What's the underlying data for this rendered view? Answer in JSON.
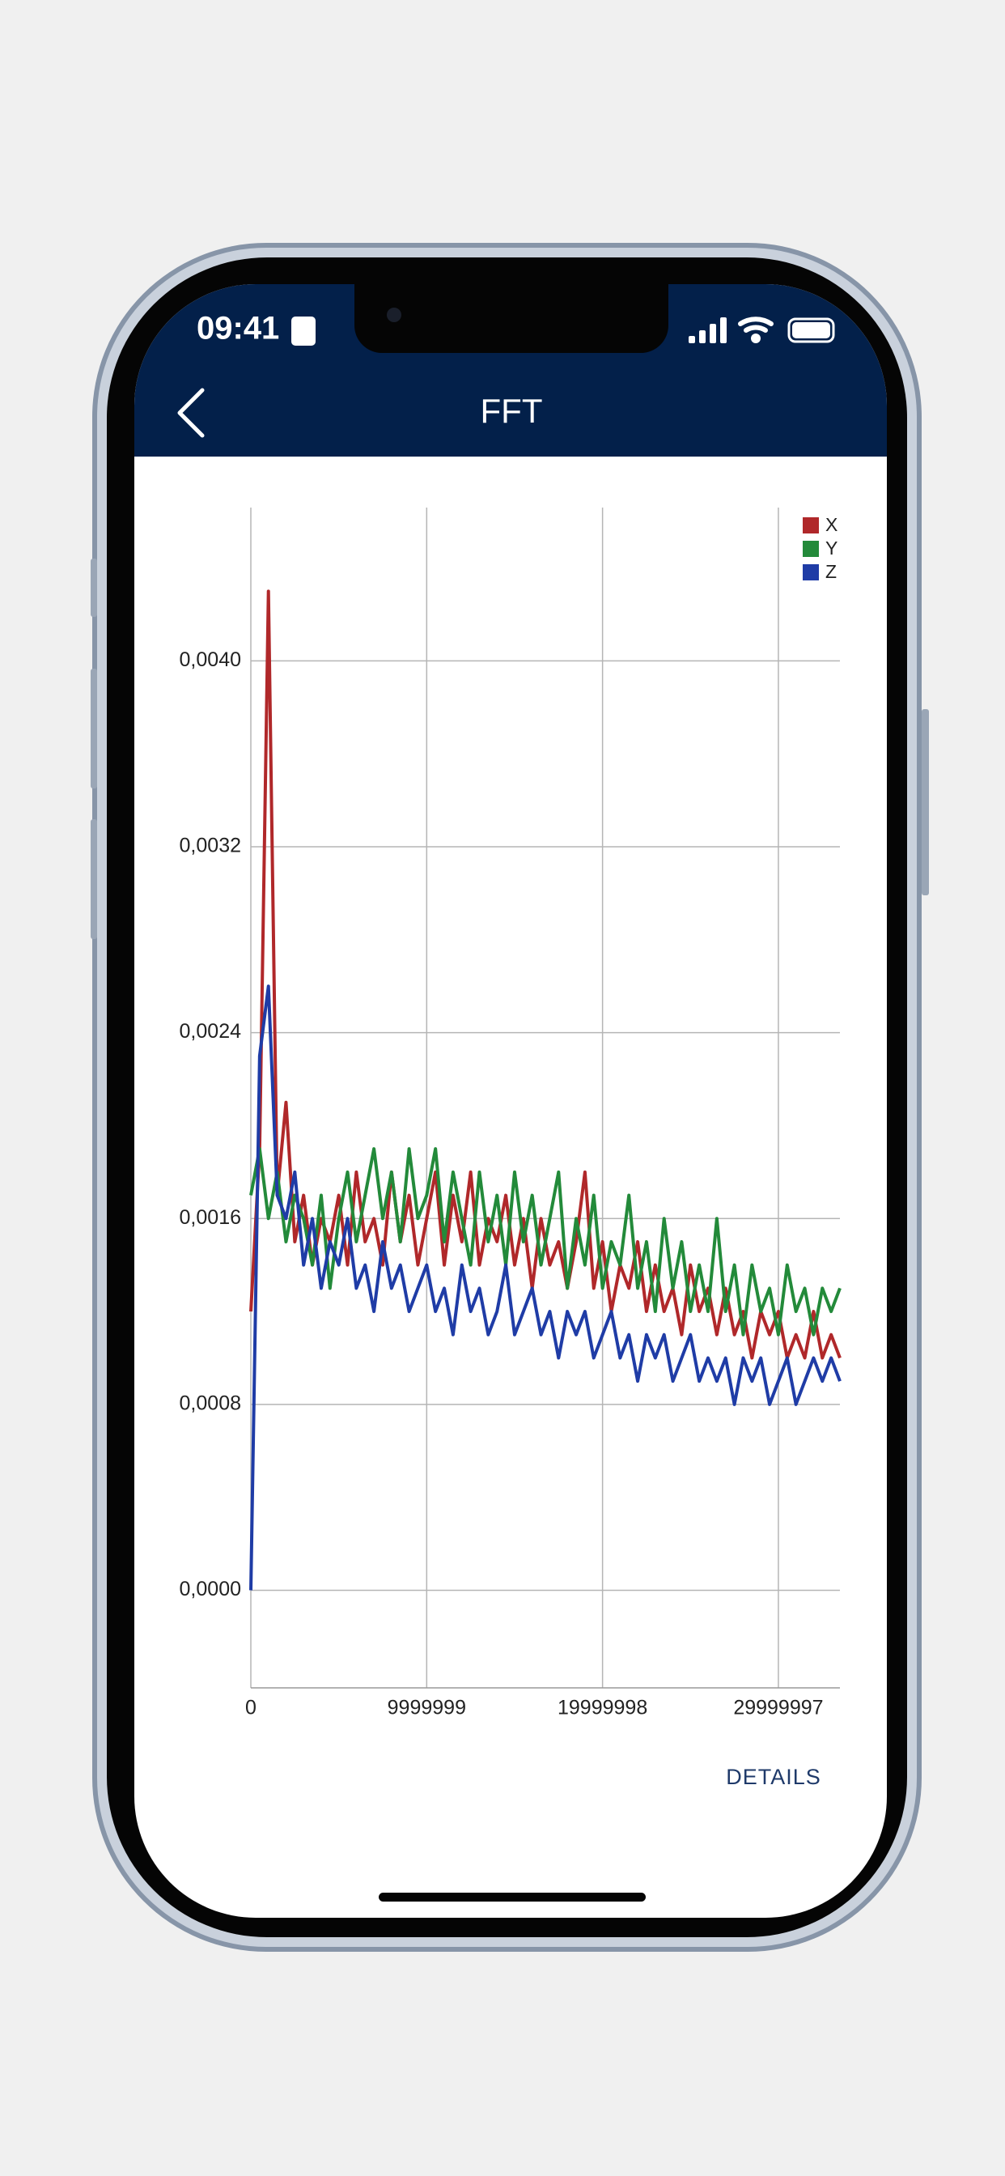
{
  "status_bar": {
    "time": "09:41"
  },
  "header": {
    "title": "FFT"
  },
  "chart_data": {
    "type": "line",
    "x": [
      0,
      500000,
      1000000,
      1500000,
      2000000,
      2500000,
      3000000,
      3500000,
      4000000,
      4500000,
      5000000,
      5500000,
      6000000,
      6500000,
      7000000,
      7500000,
      8000000,
      8500000,
      9000000,
      9500000,
      10000000,
      10500000,
      11000000,
      11500000,
      12000000,
      12500000,
      13000000,
      13500000,
      14000000,
      14500000,
      15000000,
      15500000,
      16000000,
      16500000,
      17000000,
      17500000,
      18000000,
      18500000,
      19000000,
      19500000,
      20000000,
      20500000,
      21000000,
      21500000,
      22000000,
      22500000,
      23000000,
      23500000,
      24000000,
      24500000,
      25000000,
      25500000,
      26000000,
      26500000,
      27000000,
      27500000,
      28000000,
      28500000,
      29000000,
      29500000,
      30000000,
      30500000,
      31000000,
      31500000,
      32000000,
      32500000,
      33000000,
      33500000
    ],
    "series": [
      {
        "name": "X",
        "color": "#b0282a",
        "values": [
          0.0012,
          0.0019,
          0.0043,
          0.0017,
          0.0021,
          0.0015,
          0.0017,
          0.0014,
          0.0016,
          0.0015,
          0.0017,
          0.0014,
          0.0018,
          0.0015,
          0.0016,
          0.0014,
          0.0018,
          0.0015,
          0.0017,
          0.0014,
          0.0016,
          0.0018,
          0.0014,
          0.0017,
          0.0015,
          0.0018,
          0.0014,
          0.0016,
          0.0015,
          0.0017,
          0.0014,
          0.0016,
          0.0013,
          0.0016,
          0.0014,
          0.0015,
          0.0013,
          0.0015,
          0.0018,
          0.0013,
          0.0015,
          0.0012,
          0.0014,
          0.0013,
          0.0015,
          0.0012,
          0.0014,
          0.0012,
          0.0013,
          0.0011,
          0.0014,
          0.0012,
          0.0013,
          0.0011,
          0.0013,
          0.0011,
          0.0012,
          0.001,
          0.0012,
          0.0011,
          0.0012,
          0.001,
          0.0011,
          0.001,
          0.0012,
          0.001,
          0.0011,
          0.001
        ]
      },
      {
        "name": "Y",
        "color": "#238a3a",
        "values": [
          0.0017,
          0.0019,
          0.0016,
          0.0018,
          0.0015,
          0.0017,
          0.0016,
          0.0014,
          0.0017,
          0.0013,
          0.0016,
          0.0018,
          0.0015,
          0.0017,
          0.0019,
          0.0016,
          0.0018,
          0.0015,
          0.0019,
          0.0016,
          0.0017,
          0.0019,
          0.0015,
          0.0018,
          0.0016,
          0.0014,
          0.0018,
          0.0015,
          0.0017,
          0.0014,
          0.0018,
          0.0015,
          0.0017,
          0.0014,
          0.0016,
          0.0018,
          0.0013,
          0.0016,
          0.0014,
          0.0017,
          0.0013,
          0.0015,
          0.0014,
          0.0017,
          0.0013,
          0.0015,
          0.0012,
          0.0016,
          0.0013,
          0.0015,
          0.0012,
          0.0014,
          0.0012,
          0.0016,
          0.0012,
          0.0014,
          0.0011,
          0.0014,
          0.0012,
          0.0013,
          0.0011,
          0.0014,
          0.0012,
          0.0013,
          0.0011,
          0.0013,
          0.0012,
          0.0013
        ]
      },
      {
        "name": "Z",
        "color": "#1f3ca6",
        "values": [
          0,
          0.0023,
          0.0026,
          0.0017,
          0.0016,
          0.0018,
          0.0014,
          0.0016,
          0.0013,
          0.0015,
          0.0014,
          0.0016,
          0.0013,
          0.0014,
          0.0012,
          0.0015,
          0.0013,
          0.0014,
          0.0012,
          0.0013,
          0.0014,
          0.0012,
          0.0013,
          0.0011,
          0.0014,
          0.0012,
          0.0013,
          0.0011,
          0.0012,
          0.0014,
          0.0011,
          0.0012,
          0.0013,
          0.0011,
          0.0012,
          0.001,
          0.0012,
          0.0011,
          0.0012,
          0.001,
          0.0011,
          0.0012,
          0.001,
          0.0011,
          0.0009,
          0.0011,
          0.001,
          0.0011,
          0.0009,
          0.001,
          0.0011,
          0.0009,
          0.001,
          0.0009,
          0.001,
          0.0008,
          0.001,
          0.0009,
          0.001,
          0.0008,
          0.0009,
          0.001,
          0.0008,
          0.0009,
          0.001,
          0.0009,
          0.001,
          0.0009
        ]
      }
    ],
    "xlim": [
      0,
      33500000
    ],
    "ylim": [
      -0.00042,
      0.00466
    ],
    "xticks": [
      0,
      9999999,
      19999998,
      29999997
    ],
    "yticks": [
      {
        "value": 0,
        "label": "0,0000"
      },
      {
        "value": 0.0008,
        "label": "0,0008"
      },
      {
        "value": 0.0016,
        "label": "0,0016"
      },
      {
        "value": 0.0024,
        "label": "0,0024"
      },
      {
        "value": 0.0032,
        "label": "0,0032"
      },
      {
        "value": 0.004,
        "label": "0,0040"
      }
    ],
    "grid": true,
    "legend": "top-right"
  },
  "button": {
    "label": "DETAILS"
  }
}
